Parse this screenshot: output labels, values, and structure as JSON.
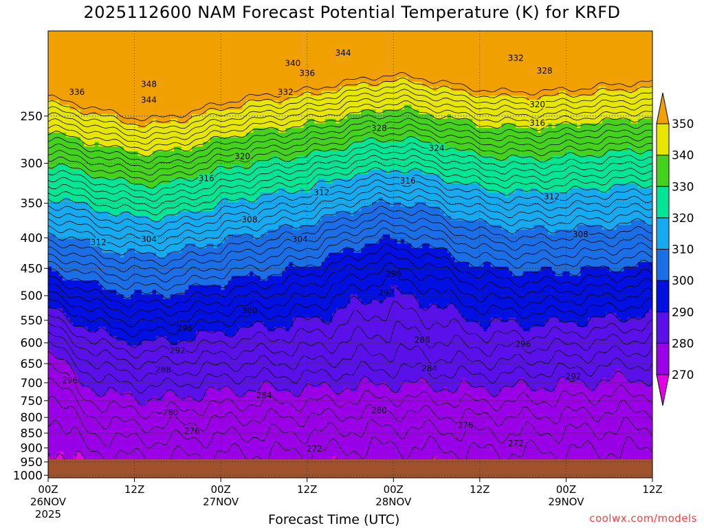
{
  "chart_data": {
    "type": "heatmap",
    "title": "2025112600 NAM Forecast Potential Temperature (K) for KRFD",
    "xlabel": "Forecast Time (UTC)",
    "ylabel": "",
    "credit": "coolwx.com/models",
    "y_scale": "log",
    "y_inverted": true,
    "ylim": [
      1010,
      180
    ],
    "y_ticks": [
      250,
      300,
      350,
      400,
      450,
      500,
      550,
      600,
      650,
      700,
      750,
      800,
      850,
      900,
      950,
      1000
    ],
    "x_range_hours": [
      0,
      84
    ],
    "x_ticks": [
      {
        "hour": 0,
        "lines": [
          "00Z",
          "26NOV",
          "2025"
        ]
      },
      {
        "hour": 12,
        "lines": [
          "12Z"
        ]
      },
      {
        "hour": 24,
        "lines": [
          "00Z",
          "27NOV"
        ]
      },
      {
        "hour": 36,
        "lines": [
          "12Z"
        ]
      },
      {
        "hour": 48,
        "lines": [
          "00Z",
          "28NOV"
        ]
      },
      {
        "hour": 60,
        "lines": [
          "12Z"
        ]
      },
      {
        "hour": 72,
        "lines": [
          "00Z",
          "29NOV"
        ]
      },
      {
        "hour": 84,
        "lines": [
          "12Z"
        ]
      }
    ],
    "grid": true,
    "colorbar": {
      "levels": [
        270,
        280,
        290,
        300,
        310,
        320,
        330,
        340,
        350
      ],
      "colors": [
        "#e600e6",
        "#9a00e6",
        "#5a10e8",
        "#0010e0",
        "#1a6ee6",
        "#16aaf0",
        "#00e696",
        "#44d21e",
        "#e6e600",
        "#f0a000"
      ],
      "extend": "both",
      "units": "K"
    },
    "contour_labels": [
      {
        "hour": 4,
        "p": 228,
        "value": 336
      },
      {
        "hour": 14,
        "p": 221,
        "value": 348
      },
      {
        "hour": 14,
        "p": 235,
        "value": 344
      },
      {
        "hour": 34,
        "p": 204,
        "value": 340
      },
      {
        "hour": 36,
        "p": 212,
        "value": 336
      },
      {
        "hour": 41,
        "p": 196,
        "value": 344
      },
      {
        "hour": 33,
        "p": 228,
        "value": 332
      },
      {
        "hour": 46,
        "p": 262,
        "value": 328
      },
      {
        "hour": 54,
        "p": 283,
        "value": 324
      },
      {
        "hour": 65,
        "p": 200,
        "value": 332
      },
      {
        "hour": 69,
        "p": 210,
        "value": 328
      },
      {
        "hour": 68,
        "p": 239,
        "value": 320
      },
      {
        "hour": 68,
        "p": 257,
        "value": 316
      },
      {
        "hour": 27,
        "p": 292,
        "value": 320
      },
      {
        "hour": 22,
        "p": 318,
        "value": 316
      },
      {
        "hour": 38,
        "p": 336,
        "value": 312
      },
      {
        "hour": 50,
        "p": 321,
        "value": 316
      },
      {
        "hour": 70,
        "p": 341,
        "value": 312
      },
      {
        "hour": 28,
        "p": 373,
        "value": 308
      },
      {
        "hour": 14,
        "p": 402,
        "value": 304
      },
      {
        "hour": 35,
        "p": 402,
        "value": 304
      },
      {
        "hour": 7,
        "p": 407,
        "value": 312
      },
      {
        "hour": 74,
        "p": 395,
        "value": 308
      },
      {
        "hour": 48,
        "p": 460,
        "value": 296
      },
      {
        "hour": 47,
        "p": 495,
        "value": 292
      },
      {
        "hour": 28,
        "p": 530,
        "value": 300
      },
      {
        "hour": 19,
        "p": 567,
        "value": 296
      },
      {
        "hour": 18,
        "p": 618,
        "value": 292
      },
      {
        "hour": 16,
        "p": 666,
        "value": 288
      },
      {
        "hour": 3,
        "p": 694,
        "value": 296
      },
      {
        "hour": 30,
        "p": 735,
        "value": 284
      },
      {
        "hour": 52,
        "p": 593,
        "value": 288
      },
      {
        "hour": 53,
        "p": 662,
        "value": 284
      },
      {
        "hour": 66,
        "p": 603,
        "value": 296
      },
      {
        "hour": 73,
        "p": 683,
        "value": 292
      },
      {
        "hour": 17,
        "p": 785,
        "value": 280
      },
      {
        "hour": 20,
        "p": 843,
        "value": 276
      },
      {
        "hour": 46,
        "p": 779,
        "value": 280
      },
      {
        "hour": 58,
        "p": 824,
        "value": 276
      },
      {
        "hour": 37,
        "p": 903,
        "value": 272
      },
      {
        "hour": 65,
        "p": 885,
        "value": 272
      }
    ]
  }
}
